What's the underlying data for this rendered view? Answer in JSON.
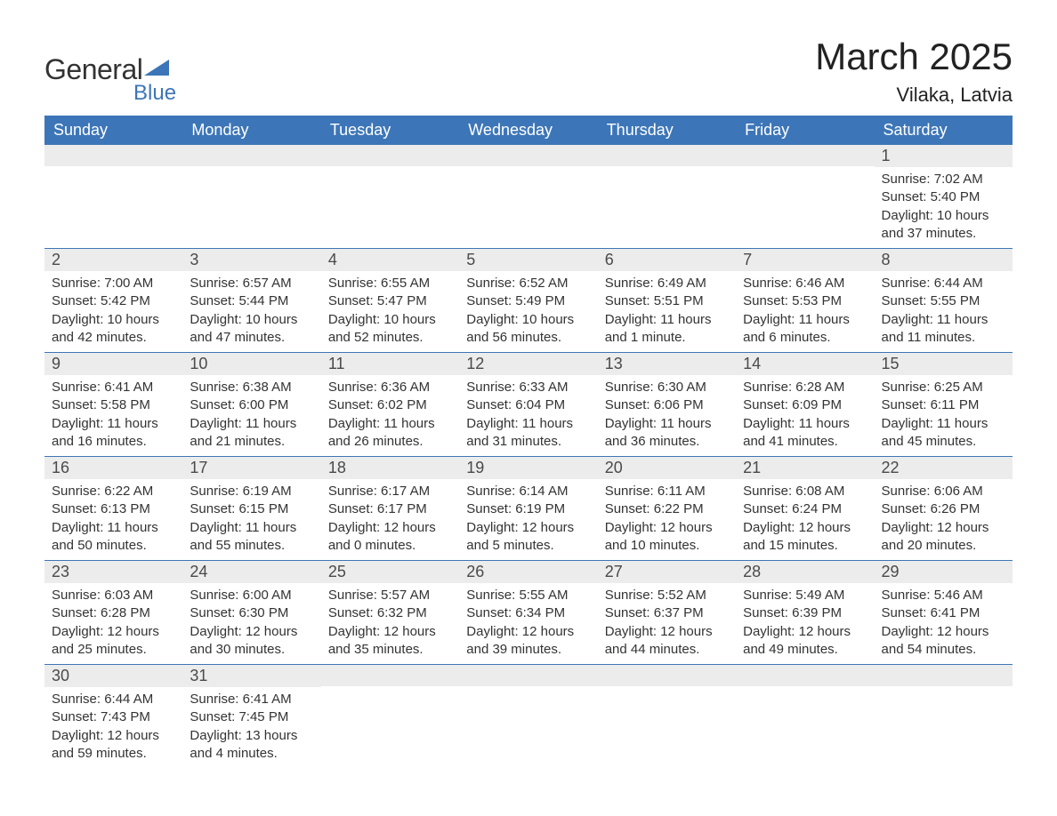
{
  "logo": {
    "text_general": "General",
    "text_blue": "Blue",
    "icon_color": "#3d76b8"
  },
  "title": "March 2025",
  "location": "Vilaka, Latvia",
  "colors": {
    "header_bg": "#3d76b8",
    "header_text": "#ffffff",
    "daynum_bg": "#ececec",
    "text": "#333333",
    "border": "#3d76b8",
    "page_bg": "#ffffff"
  },
  "weekdays": [
    "Sunday",
    "Monday",
    "Tuesday",
    "Wednesday",
    "Thursday",
    "Friday",
    "Saturday"
  ],
  "weeks": [
    [
      {
        "num": "",
        "sunrise": "",
        "sunset": "",
        "daylight": ""
      },
      {
        "num": "",
        "sunrise": "",
        "sunset": "",
        "daylight": ""
      },
      {
        "num": "",
        "sunrise": "",
        "sunset": "",
        "daylight": ""
      },
      {
        "num": "",
        "sunrise": "",
        "sunset": "",
        "daylight": ""
      },
      {
        "num": "",
        "sunrise": "",
        "sunset": "",
        "daylight": ""
      },
      {
        "num": "",
        "sunrise": "",
        "sunset": "",
        "daylight": ""
      },
      {
        "num": "1",
        "sunrise": "Sunrise: 7:02 AM",
        "sunset": "Sunset: 5:40 PM",
        "daylight": "Daylight: 10 hours and 37 minutes."
      }
    ],
    [
      {
        "num": "2",
        "sunrise": "Sunrise: 7:00 AM",
        "sunset": "Sunset: 5:42 PM",
        "daylight": "Daylight: 10 hours and 42 minutes."
      },
      {
        "num": "3",
        "sunrise": "Sunrise: 6:57 AM",
        "sunset": "Sunset: 5:44 PM",
        "daylight": "Daylight: 10 hours and 47 minutes."
      },
      {
        "num": "4",
        "sunrise": "Sunrise: 6:55 AM",
        "sunset": "Sunset: 5:47 PM",
        "daylight": "Daylight: 10 hours and 52 minutes."
      },
      {
        "num": "5",
        "sunrise": "Sunrise: 6:52 AM",
        "sunset": "Sunset: 5:49 PM",
        "daylight": "Daylight: 10 hours and 56 minutes."
      },
      {
        "num": "6",
        "sunrise": "Sunrise: 6:49 AM",
        "sunset": "Sunset: 5:51 PM",
        "daylight": "Daylight: 11 hours and 1 minute."
      },
      {
        "num": "7",
        "sunrise": "Sunrise: 6:46 AM",
        "sunset": "Sunset: 5:53 PM",
        "daylight": "Daylight: 11 hours and 6 minutes."
      },
      {
        "num": "8",
        "sunrise": "Sunrise: 6:44 AM",
        "sunset": "Sunset: 5:55 PM",
        "daylight": "Daylight: 11 hours and 11 minutes."
      }
    ],
    [
      {
        "num": "9",
        "sunrise": "Sunrise: 6:41 AM",
        "sunset": "Sunset: 5:58 PM",
        "daylight": "Daylight: 11 hours and 16 minutes."
      },
      {
        "num": "10",
        "sunrise": "Sunrise: 6:38 AM",
        "sunset": "Sunset: 6:00 PM",
        "daylight": "Daylight: 11 hours and 21 minutes."
      },
      {
        "num": "11",
        "sunrise": "Sunrise: 6:36 AM",
        "sunset": "Sunset: 6:02 PM",
        "daylight": "Daylight: 11 hours and 26 minutes."
      },
      {
        "num": "12",
        "sunrise": "Sunrise: 6:33 AM",
        "sunset": "Sunset: 6:04 PM",
        "daylight": "Daylight: 11 hours and 31 minutes."
      },
      {
        "num": "13",
        "sunrise": "Sunrise: 6:30 AM",
        "sunset": "Sunset: 6:06 PM",
        "daylight": "Daylight: 11 hours and 36 minutes."
      },
      {
        "num": "14",
        "sunrise": "Sunrise: 6:28 AM",
        "sunset": "Sunset: 6:09 PM",
        "daylight": "Daylight: 11 hours and 41 minutes."
      },
      {
        "num": "15",
        "sunrise": "Sunrise: 6:25 AM",
        "sunset": "Sunset: 6:11 PM",
        "daylight": "Daylight: 11 hours and 45 minutes."
      }
    ],
    [
      {
        "num": "16",
        "sunrise": "Sunrise: 6:22 AM",
        "sunset": "Sunset: 6:13 PM",
        "daylight": "Daylight: 11 hours and 50 minutes."
      },
      {
        "num": "17",
        "sunrise": "Sunrise: 6:19 AM",
        "sunset": "Sunset: 6:15 PM",
        "daylight": "Daylight: 11 hours and 55 minutes."
      },
      {
        "num": "18",
        "sunrise": "Sunrise: 6:17 AM",
        "sunset": "Sunset: 6:17 PM",
        "daylight": "Daylight: 12 hours and 0 minutes."
      },
      {
        "num": "19",
        "sunrise": "Sunrise: 6:14 AM",
        "sunset": "Sunset: 6:19 PM",
        "daylight": "Daylight: 12 hours and 5 minutes."
      },
      {
        "num": "20",
        "sunrise": "Sunrise: 6:11 AM",
        "sunset": "Sunset: 6:22 PM",
        "daylight": "Daylight: 12 hours and 10 minutes."
      },
      {
        "num": "21",
        "sunrise": "Sunrise: 6:08 AM",
        "sunset": "Sunset: 6:24 PM",
        "daylight": "Daylight: 12 hours and 15 minutes."
      },
      {
        "num": "22",
        "sunrise": "Sunrise: 6:06 AM",
        "sunset": "Sunset: 6:26 PM",
        "daylight": "Daylight: 12 hours and 20 minutes."
      }
    ],
    [
      {
        "num": "23",
        "sunrise": "Sunrise: 6:03 AM",
        "sunset": "Sunset: 6:28 PM",
        "daylight": "Daylight: 12 hours and 25 minutes."
      },
      {
        "num": "24",
        "sunrise": "Sunrise: 6:00 AM",
        "sunset": "Sunset: 6:30 PM",
        "daylight": "Daylight: 12 hours and 30 minutes."
      },
      {
        "num": "25",
        "sunrise": "Sunrise: 5:57 AM",
        "sunset": "Sunset: 6:32 PM",
        "daylight": "Daylight: 12 hours and 35 minutes."
      },
      {
        "num": "26",
        "sunrise": "Sunrise: 5:55 AM",
        "sunset": "Sunset: 6:34 PM",
        "daylight": "Daylight: 12 hours and 39 minutes."
      },
      {
        "num": "27",
        "sunrise": "Sunrise: 5:52 AM",
        "sunset": "Sunset: 6:37 PM",
        "daylight": "Daylight: 12 hours and 44 minutes."
      },
      {
        "num": "28",
        "sunrise": "Sunrise: 5:49 AM",
        "sunset": "Sunset: 6:39 PM",
        "daylight": "Daylight: 12 hours and 49 minutes."
      },
      {
        "num": "29",
        "sunrise": "Sunrise: 5:46 AM",
        "sunset": "Sunset: 6:41 PM",
        "daylight": "Daylight: 12 hours and 54 minutes."
      }
    ],
    [
      {
        "num": "30",
        "sunrise": "Sunrise: 6:44 AM",
        "sunset": "Sunset: 7:43 PM",
        "daylight": "Daylight: 12 hours and 59 minutes."
      },
      {
        "num": "31",
        "sunrise": "Sunrise: 6:41 AM",
        "sunset": "Sunset: 7:45 PM",
        "daylight": "Daylight: 13 hours and 4 minutes."
      },
      {
        "num": "",
        "sunrise": "",
        "sunset": "",
        "daylight": ""
      },
      {
        "num": "",
        "sunrise": "",
        "sunset": "",
        "daylight": ""
      },
      {
        "num": "",
        "sunrise": "",
        "sunset": "",
        "daylight": ""
      },
      {
        "num": "",
        "sunrise": "",
        "sunset": "",
        "daylight": ""
      },
      {
        "num": "",
        "sunrise": "",
        "sunset": "",
        "daylight": ""
      }
    ]
  ]
}
